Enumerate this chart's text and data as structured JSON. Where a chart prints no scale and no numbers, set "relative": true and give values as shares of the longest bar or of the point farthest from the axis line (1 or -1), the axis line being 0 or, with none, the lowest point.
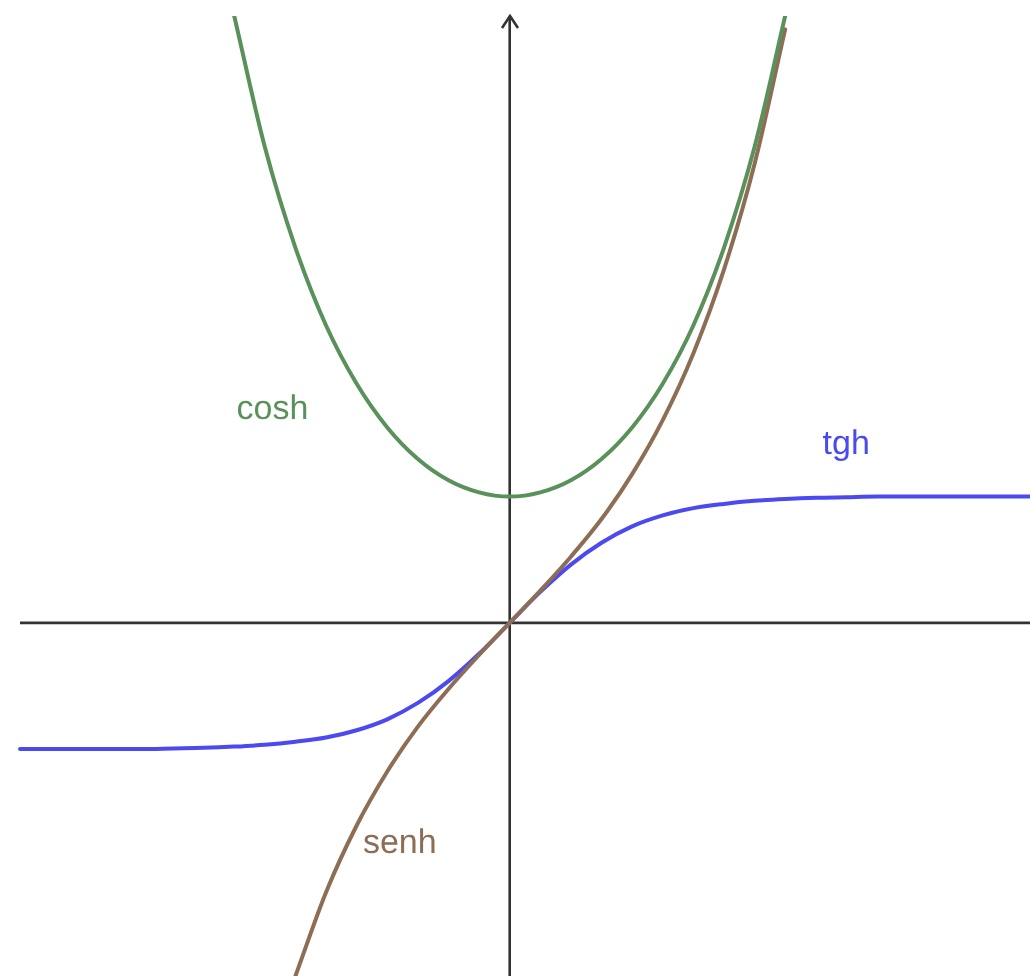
{
  "chart_data": {
    "type": "line",
    "relative": true,
    "legend": false,
    "grid": false,
    "tick_labels": false,
    "marker": "none",
    "line_style": "solid",
    "categories": [
      null,
      null,
      null,
      null,
      null,
      null,
      null,
      null,
      null,
      null,
      null,
      null,
      null,
      null,
      null,
      null,
      null,
      null,
      null,
      null,
      null,
      null,
      null,
      null,
      null,
      null,
      null,
      null,
      null,
      null,
      null,
      null,
      null,
      null
    ],
    "series": [
      {
        "name": "cosh",
        "color": "#5a915a",
        "values": [
          null,
          null,
          null,
          null,
          null,
          null,
          null,
          1,
          0.784,
          0.618,
          0.49,
          0.394,
          0.322,
          0.27,
          0.235,
          0.215,
          0.208,
          0.215,
          0.235,
          0.27,
          0.322,
          0.394,
          0.49,
          0.618,
          0.784,
          1,
          null,
          null,
          null,
          null,
          null,
          null,
          null,
          null
        ]
      },
      {
        "name": "senh",
        "color": "#8d6e55",
        "values": [
          null,
          null,
          null,
          null,
          null,
          null,
          null,
          null,
          null,
          -0.582,
          -0.444,
          -0.334,
          -0.245,
          -0.171,
          -0.109,
          -0.053,
          0,
          0.053,
          0.109,
          0.171,
          0.245,
          0.334,
          0.444,
          0.582,
          0.756,
          0.978,
          null,
          null,
          null,
          null,
          null,
          null,
          null,
          null
        ]
      },
      {
        "name": "tgh",
        "color": "#4a4af0",
        "values": [
          -0.208,
          -0.208,
          -0.208,
          -0.208,
          -0.208,
          -0.207,
          -0.206,
          -0.204,
          -0.201,
          -0.196,
          -0.189,
          -0.177,
          -0.159,
          -0.132,
          -0.096,
          -0.051,
          0,
          0.051,
          0.096,
          0.132,
          0.159,
          0.177,
          0.189,
          0.196,
          0.201,
          0.204,
          0.206,
          0.207,
          0.208,
          0.208,
          0.208,
          0.208,
          0.208,
          0.208
        ]
      }
    ]
  }
}
